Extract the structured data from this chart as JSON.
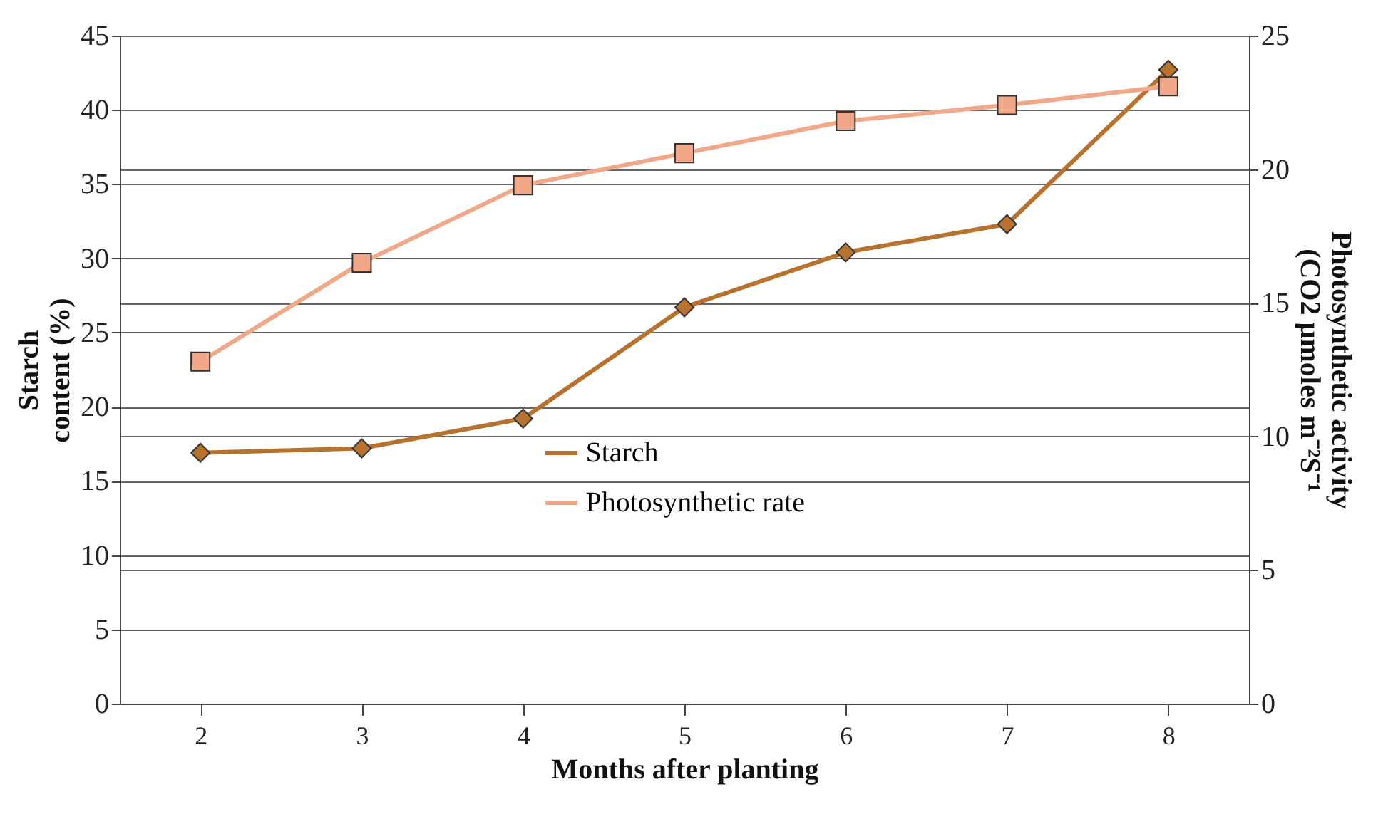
{
  "chart_data": {
    "type": "line",
    "categories": [
      "2",
      "3",
      "4",
      "5",
      "6",
      "7",
      "8"
    ],
    "xlabel": "Months after planting",
    "ylabel": "Starch content (%)",
    "y2label": "Photosynthetic activity (CO2 µmoles m⁻²S⁻¹",
    "ylim": [
      0,
      45
    ],
    "yticks": [
      0,
      5,
      10,
      15,
      20,
      25,
      30,
      35,
      40,
      45
    ],
    "y2lim": [
      0,
      25
    ],
    "y2ticks": [
      0,
      5,
      10,
      15,
      20,
      25
    ],
    "grid": "y",
    "legend": "bottom right",
    "line_style": "solid",
    "series": [
      {
        "name": "Starch",
        "color": "#b8722e",
        "marker": "diamond",
        "axis": "y",
        "values": [
          16.9,
          17.2,
          19.2,
          26.7,
          30.4,
          32.3,
          42.7
        ]
      },
      {
        "name": "Photosynthetic rate",
        "color": "#f0a888",
        "marker": "square",
        "axis": "y2",
        "values": [
          12.8,
          16.5,
          19.4,
          20.6,
          21.8,
          22.4,
          23.1
        ]
      }
    ]
  }
}
